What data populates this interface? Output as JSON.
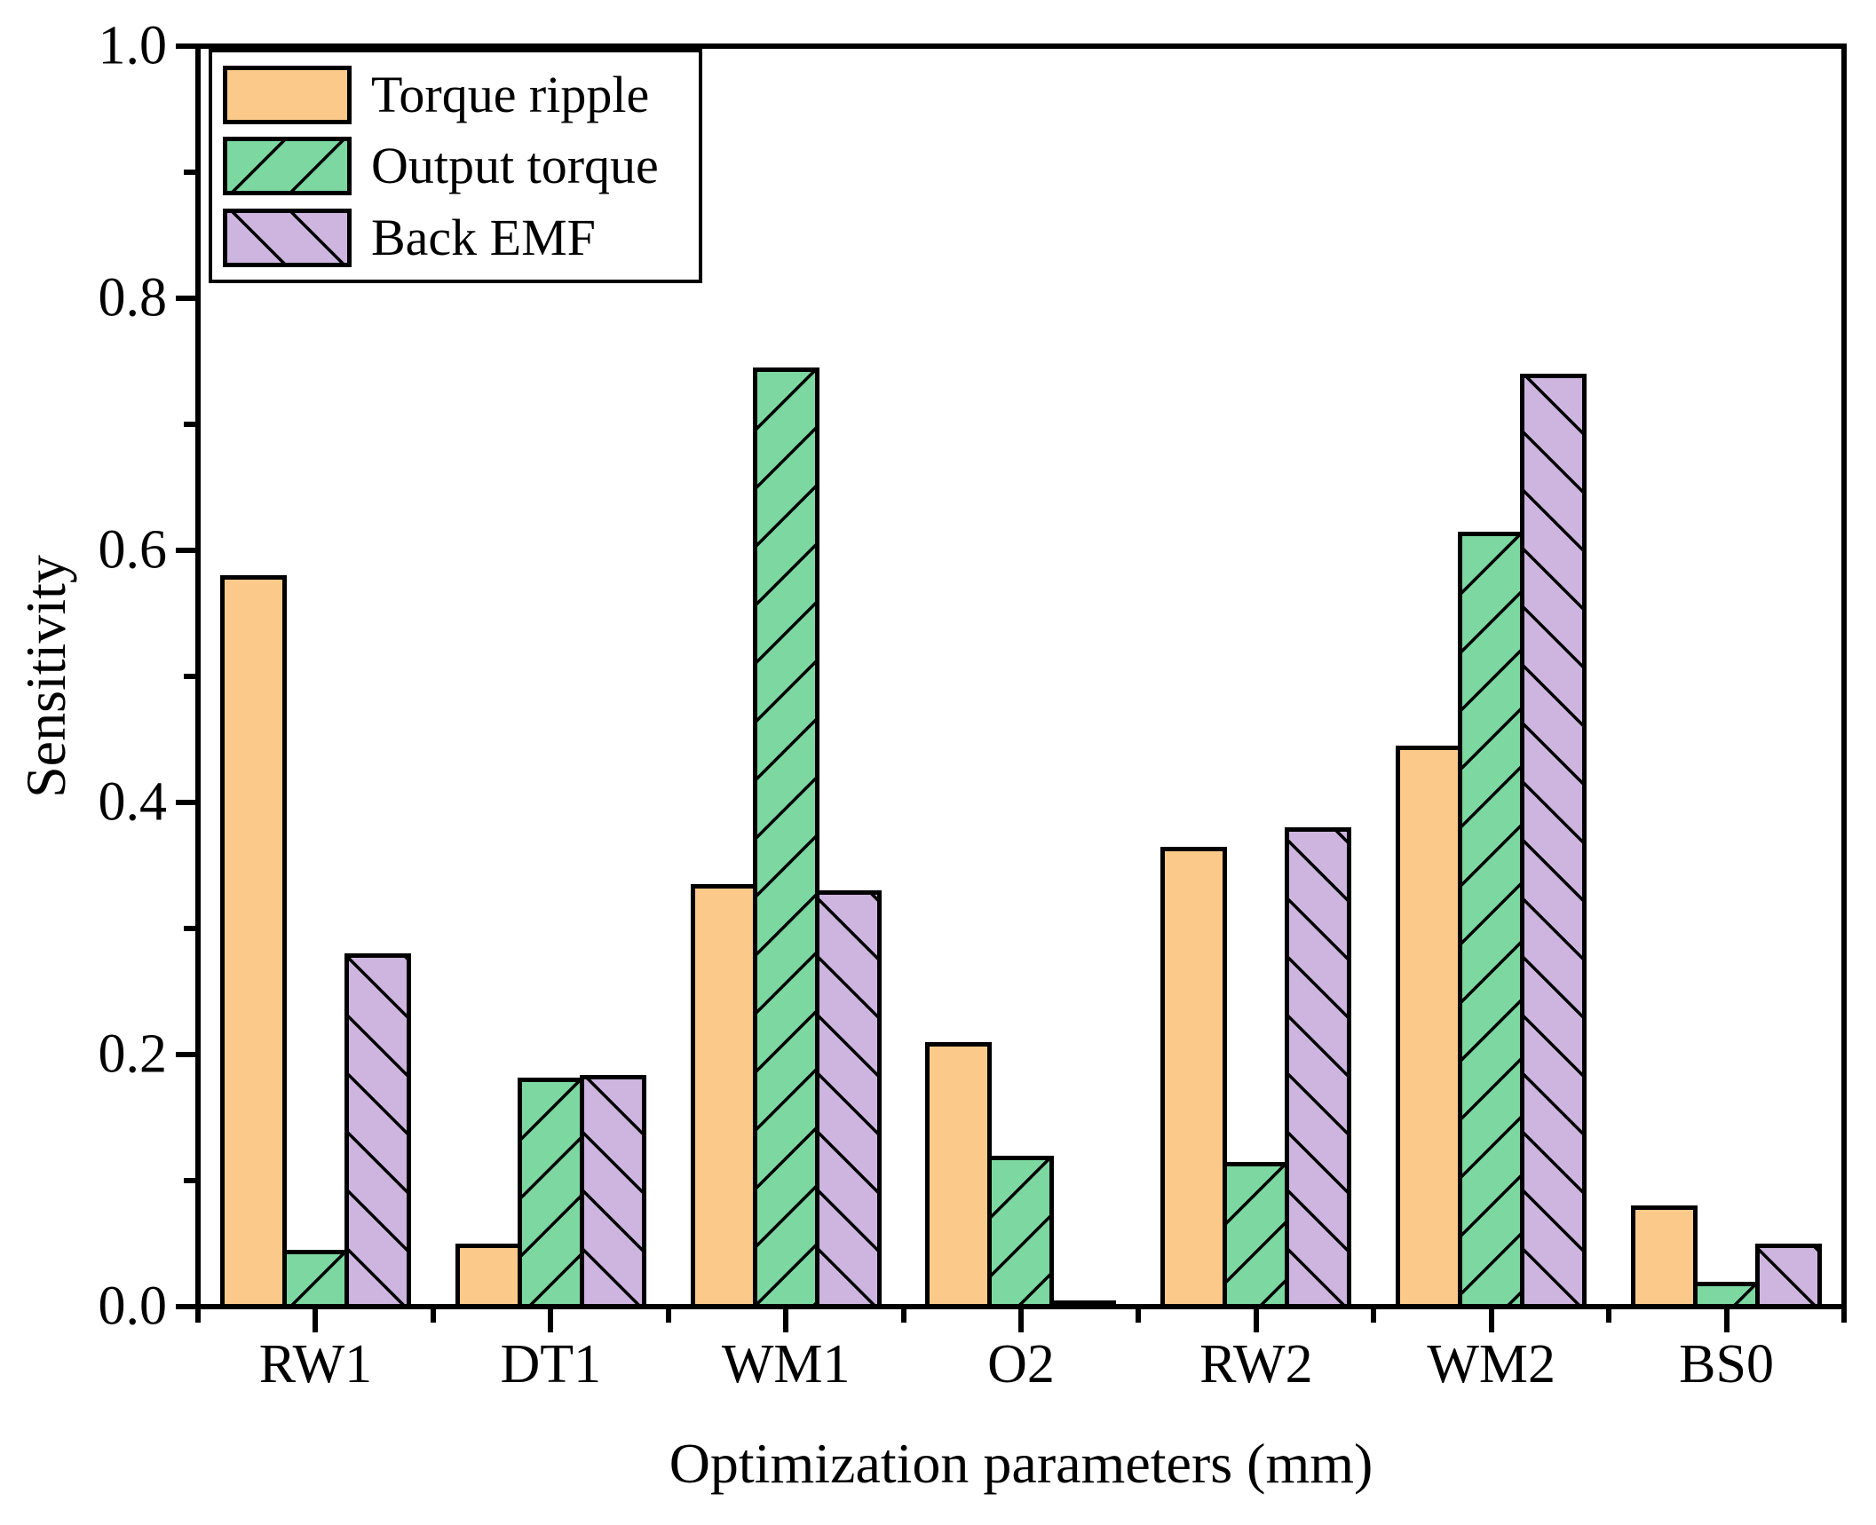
{
  "chart_data": {
    "type": "bar",
    "title": "",
    "xlabel": "Optimization parameters (mm)",
    "ylabel": "Sensitivity",
    "ylim": [
      0.0,
      1.0
    ],
    "y_tick_labels": [
      "0.0",
      "0.2",
      "0.4",
      "0.6",
      "0.8",
      "1.0"
    ],
    "y_major_ticks": [
      0.0,
      0.2,
      0.4,
      0.6,
      0.8,
      1.0
    ],
    "y_minor_ticks": [
      0.1,
      0.3,
      0.5,
      0.7,
      0.9
    ],
    "categories": [
      "RW1",
      "DT1",
      "WM1",
      "O2",
      "RW2",
      "WM2",
      "BS0"
    ],
    "series": [
      {
        "name": "Torque ripple",
        "color": "#FBCA8B",
        "hatch": "none",
        "values": [
          0.58,
          0.05,
          0.335,
          0.21,
          0.365,
          0.445,
          0.08
        ]
      },
      {
        "name": "Output torque",
        "color": "#7CD7A1",
        "hatch": "forward-diagonal",
        "values": [
          0.045,
          0.182,
          0.745,
          0.12,
          0.115,
          0.615,
          0.02
        ]
      },
      {
        "name": "Back EMF",
        "color": "#CDB5DF",
        "hatch": "backward-diagonal",
        "values": [
          0.28,
          0.184,
          0.33,
          0.005,
          0.38,
          0.74,
          0.05
        ]
      }
    ],
    "legend_position": "top-left",
    "grid": false,
    "axis_color": "#000000",
    "background_color": "#ffffff"
  }
}
